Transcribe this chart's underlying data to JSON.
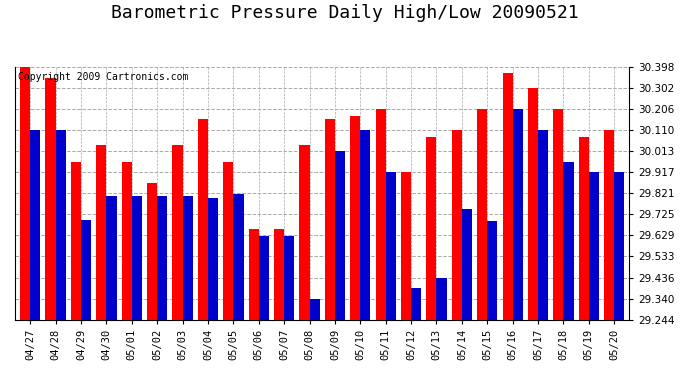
{
  "title": "Barometric Pressure Daily High/Low 20090521",
  "copyright": "Copyright 2009 Cartronics.com",
  "dates": [
    "04/27",
    "04/28",
    "04/29",
    "04/30",
    "05/01",
    "05/02",
    "05/03",
    "05/04",
    "05/05",
    "05/06",
    "05/07",
    "05/08",
    "05/09",
    "05/10",
    "05/11",
    "05/12",
    "05/13",
    "05/14",
    "05/15",
    "05/16",
    "05/17",
    "05/18",
    "05/19",
    "05/20"
  ],
  "highs": [
    30.398,
    30.35,
    29.965,
    30.04,
    29.965,
    29.87,
    30.04,
    30.16,
    29.965,
    29.66,
    29.66,
    30.04,
    30.16,
    30.175,
    30.206,
    29.917,
    30.08,
    30.11,
    30.206,
    30.37,
    30.302,
    30.206,
    30.08,
    30.11
  ],
  "lows": [
    30.11,
    30.11,
    29.7,
    29.81,
    29.81,
    29.81,
    29.81,
    29.8,
    29.82,
    29.625,
    29.625,
    29.34,
    30.013,
    30.11,
    29.917,
    29.39,
    29.436,
    29.75,
    29.695,
    30.206,
    30.11,
    29.965,
    29.917,
    29.917
  ],
  "high_color": "#ff0000",
  "low_color": "#0000cc",
  "background_color": "#ffffff",
  "plot_bg_color": "#ffffff",
  "grid_color": "#aaaaaa",
  "ymin": 29.244,
  "ymax": 30.398,
  "yticks": [
    29.244,
    29.34,
    29.436,
    29.533,
    29.629,
    29.725,
    29.821,
    29.917,
    30.013,
    30.11,
    30.206,
    30.302,
    30.398
  ],
  "bar_width": 0.4,
  "title_fontsize": 13,
  "tick_fontsize": 7.5,
  "copyright_fontsize": 7
}
